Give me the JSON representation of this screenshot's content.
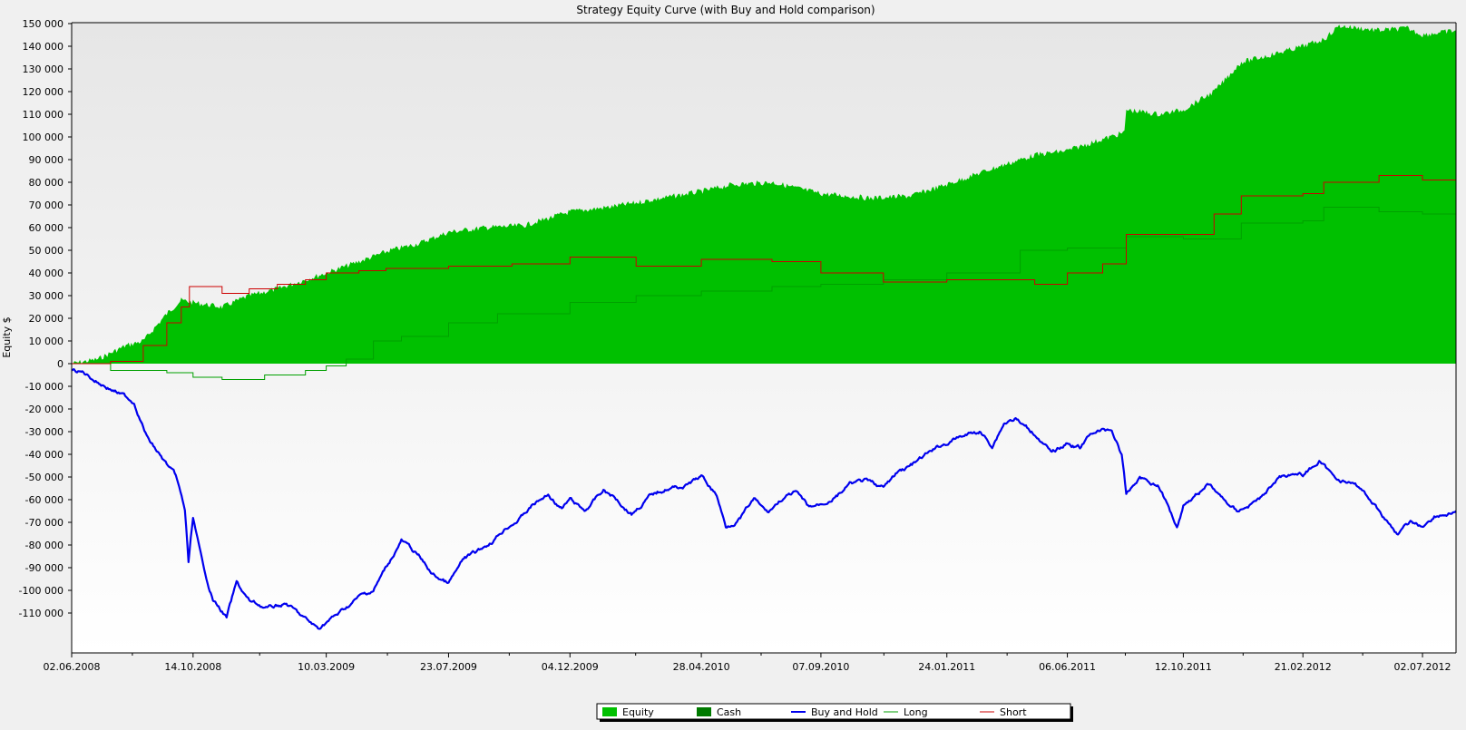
{
  "chart_data": {
    "type": "area",
    "title": "Strategy Equity Curve (with Buy and Hold comparison)",
    "xlabel": "",
    "ylabel": "Equity $",
    "ylim": [
      -120000,
      150000
    ],
    "y_ticks": [
      150000,
      140000,
      130000,
      120000,
      110000,
      100000,
      90000,
      80000,
      70000,
      60000,
      50000,
      40000,
      30000,
      20000,
      10000,
      0,
      -10000,
      -20000,
      -30000,
      -40000,
      -50000,
      -60000,
      -70000,
      -80000,
      -90000,
      -100000,
      -110000
    ],
    "y_tick_labels": [
      "150 000",
      "140 000",
      "130 000",
      "120 000",
      "110 000",
      "100 000",
      "90 000",
      "80 000",
      "70 000",
      "60 000",
      "50 000",
      "40 000",
      "30 000",
      "20 000",
      "10 000",
      "0",
      "-10 000",
      "-20 000",
      "-30 000",
      "-40 000",
      "-50 000",
      "-60 000",
      "-70 000",
      "-80 000",
      "-90 000",
      "-100 000",
      "-110 000"
    ],
    "xlim": [
      "2008-06-02",
      "2012-08-08"
    ],
    "x_ticks": [
      "2008-06-02",
      "2008-10-14",
      "2009-03-10",
      "2009-07-23",
      "2009-12-04",
      "2010-04-28",
      "2010-09-07",
      "2011-01-24",
      "2011-06-06",
      "2011-10-12",
      "2012-02-21",
      "2012-07-02"
    ],
    "x_tick_labels": [
      "02.06.2008",
      "14.10.2008",
      "10.03.2009",
      "23.07.2009",
      "04.12.2009",
      "28.04.2010",
      "07.09.2010",
      "24.01.2011",
      "06.06.2011",
      "12.10.2011",
      "21.02.2012",
      "02.07.2012"
    ],
    "grid": false,
    "legend_position": "bottom-center",
    "series": [
      {
        "name": "Equity",
        "kind": "area",
        "color": "#00c000",
        "points": [
          [
            "2008-06-02",
            0
          ],
          [
            "2008-07-01",
            2000
          ],
          [
            "2008-08-01",
            8000
          ],
          [
            "2008-08-20",
            10000
          ],
          [
            "2008-09-15",
            22000
          ],
          [
            "2008-10-01",
            28000
          ],
          [
            "2008-10-14",
            27000
          ],
          [
            "2008-11-15",
            25000
          ],
          [
            "2008-12-15",
            30000
          ],
          [
            "2009-01-15",
            33000
          ],
          [
            "2009-02-15",
            37000
          ],
          [
            "2009-03-10",
            40000
          ],
          [
            "2009-04-15",
            45000
          ],
          [
            "2009-05-20",
            50000
          ],
          [
            "2009-06-20",
            53000
          ],
          [
            "2009-07-23",
            58000
          ],
          [
            "2009-09-01",
            60000
          ],
          [
            "2009-10-15",
            61000
          ],
          [
            "2009-12-04",
            67000
          ],
          [
            "2010-01-15",
            69000
          ],
          [
            "2010-02-15",
            71000
          ],
          [
            "2010-04-28",
            76000
          ],
          [
            "2010-06-01",
            79000
          ],
          [
            "2010-07-15",
            80000
          ],
          [
            "2010-09-07",
            75000
          ],
          [
            "2010-11-01",
            73000
          ],
          [
            "2010-12-15",
            74000
          ],
          [
            "2011-01-24",
            79000
          ],
          [
            "2011-03-15",
            86000
          ],
          [
            "2011-05-01",
            92000
          ],
          [
            "2011-06-06",
            94000
          ],
          [
            "2011-07-15",
            99000
          ],
          [
            "2011-08-08",
            102000
          ],
          [
            "2011-08-10",
            112000
          ],
          [
            "2011-09-15",
            110000
          ],
          [
            "2011-10-12",
            112000
          ],
          [
            "2011-11-15",
            120000
          ],
          [
            "2011-12-15",
            133000
          ],
          [
            "2012-01-15",
            136000
          ],
          [
            "2012-02-21",
            140000
          ],
          [
            "2012-03-15",
            143000
          ],
          [
            "2012-04-01",
            149000
          ],
          [
            "2012-05-15",
            147000
          ],
          [
            "2012-06-15",
            148000
          ],
          [
            "2012-07-02",
            145000
          ],
          [
            "2012-08-08",
            147000
          ]
        ]
      },
      {
        "name": "Cash",
        "kind": "area",
        "color": "#007a00",
        "points": []
      },
      {
        "name": "Buy and Hold",
        "kind": "line",
        "color": "#0000ee",
        "points": [
          [
            "2008-06-02",
            -3000
          ],
          [
            "2008-06-15",
            -4000
          ],
          [
            "2008-07-01",
            -8000
          ],
          [
            "2008-07-20",
            -12000
          ],
          [
            "2008-08-10",
            -17000
          ],
          [
            "2008-08-25",
            -33000
          ],
          [
            "2008-09-10",
            -42000
          ],
          [
            "2008-09-25",
            -50000
          ],
          [
            "2008-10-05",
            -65000
          ],
          [
            "2008-10-09",
            -88000
          ],
          [
            "2008-10-14",
            -68000
          ],
          [
            "2008-10-25",
            -90000
          ],
          [
            "2008-11-05",
            -104000
          ],
          [
            "2008-11-20",
            -112000
          ],
          [
            "2008-12-01",
            -97000
          ],
          [
            "2008-12-15",
            -105000
          ],
          [
            "2009-01-05",
            -108000
          ],
          [
            "2009-01-25",
            -106000
          ],
          [
            "2009-02-15",
            -113000
          ],
          [
            "2009-03-01",
            -117000
          ],
          [
            "2009-03-10",
            -114000
          ],
          [
            "2009-03-25",
            -110000
          ],
          [
            "2009-04-15",
            -103000
          ],
          [
            "2009-05-01",
            -100000
          ],
          [
            "2009-05-15",
            -90000
          ],
          [
            "2009-06-01",
            -78000
          ],
          [
            "2009-06-20",
            -85000
          ],
          [
            "2009-07-05",
            -93000
          ],
          [
            "2009-07-23",
            -97000
          ],
          [
            "2009-08-10",
            -86000
          ],
          [
            "2009-08-25",
            -83000
          ],
          [
            "2009-09-10",
            -78000
          ],
          [
            "2009-09-25",
            -72000
          ],
          [
            "2009-10-10",
            -68000
          ],
          [
            "2009-10-25",
            -62000
          ],
          [
            "2009-11-10",
            -58000
          ],
          [
            "2009-11-25",
            -64000
          ],
          [
            "2009-12-04",
            -60000
          ],
          [
            "2009-12-20",
            -65000
          ],
          [
            "2010-01-10",
            -56000
          ],
          [
            "2010-01-25",
            -60000
          ],
          [
            "2010-02-10",
            -66000
          ],
          [
            "2010-03-01",
            -59000
          ],
          [
            "2010-03-20",
            -55000
          ],
          [
            "2010-04-10",
            -54000
          ],
          [
            "2010-04-28",
            -50000
          ],
          [
            "2010-05-15",
            -58000
          ],
          [
            "2010-05-25",
            -72000
          ],
          [
            "2010-06-10",
            -68000
          ],
          [
            "2010-06-25",
            -60000
          ],
          [
            "2010-07-10",
            -66000
          ],
          [
            "2010-07-25",
            -60000
          ],
          [
            "2010-08-10",
            -57000
          ],
          [
            "2010-08-25",
            -64000
          ],
          [
            "2010-09-07",
            -62000
          ],
          [
            "2010-09-25",
            -58000
          ],
          [
            "2010-10-10",
            -53000
          ],
          [
            "2010-10-25",
            -52000
          ],
          [
            "2010-11-15",
            -55000
          ],
          [
            "2010-12-01",
            -48000
          ],
          [
            "2010-12-20",
            -44000
          ],
          [
            "2011-01-10",
            -38000
          ],
          [
            "2011-01-24",
            -35000
          ],
          [
            "2011-02-10",
            -32000
          ],
          [
            "2011-03-01",
            -30000
          ],
          [
            "2011-03-15",
            -36000
          ],
          [
            "2011-03-28",
            -26000
          ],
          [
            "2011-04-10",
            -24000
          ],
          [
            "2011-04-20",
            -28000
          ],
          [
            "2011-05-05",
            -32000
          ],
          [
            "2011-05-20",
            -40000
          ],
          [
            "2011-06-06",
            -35000
          ],
          [
            "2011-06-20",
            -37000
          ],
          [
            "2011-07-05",
            -30000
          ],
          [
            "2011-07-25",
            -29000
          ],
          [
            "2011-08-05",
            -40000
          ],
          [
            "2011-08-10",
            -58000
          ],
          [
            "2011-08-25",
            -50000
          ],
          [
            "2011-09-15",
            -54000
          ],
          [
            "2011-10-01",
            -68000
          ],
          [
            "2011-10-05",
            -72000
          ],
          [
            "2011-10-12",
            -62000
          ],
          [
            "2011-10-28",
            -57000
          ],
          [
            "2011-11-10",
            -53000
          ],
          [
            "2011-11-25",
            -60000
          ],
          [
            "2011-12-10",
            -65000
          ],
          [
            "2011-12-25",
            -62000
          ],
          [
            "2012-01-10",
            -58000
          ],
          [
            "2012-01-25",
            -50000
          ],
          [
            "2012-02-10",
            -48000
          ],
          [
            "2012-02-21",
            -49000
          ],
          [
            "2012-03-10",
            -43000
          ],
          [
            "2012-03-25",
            -50000
          ],
          [
            "2012-04-10",
            -52000
          ],
          [
            "2012-04-25",
            -55000
          ],
          [
            "2012-05-10",
            -62000
          ],
          [
            "2012-05-25",
            -70000
          ],
          [
            "2012-06-05",
            -75000
          ],
          [
            "2012-06-20",
            -70000
          ],
          [
            "2012-07-02",
            -72000
          ],
          [
            "2012-07-15",
            -67000
          ],
          [
            "2012-08-01",
            -66000
          ],
          [
            "2012-08-08",
            -65000
          ]
        ]
      },
      {
        "name": "Long",
        "kind": "line",
        "color": "#00a000",
        "points": [
          [
            "2008-06-02",
            0
          ],
          [
            "2008-07-15",
            -3000
          ],
          [
            "2008-09-15",
            -4000
          ],
          [
            "2008-10-14",
            -6000
          ],
          [
            "2008-11-15",
            -7000
          ],
          [
            "2009-01-01",
            -5000
          ],
          [
            "2009-02-15",
            -3000
          ],
          [
            "2009-03-10",
            -1000
          ],
          [
            "2009-04-01",
            2000
          ],
          [
            "2009-05-01",
            10000
          ],
          [
            "2009-06-01",
            12000
          ],
          [
            "2009-07-23",
            18000
          ],
          [
            "2009-09-15",
            22000
          ],
          [
            "2009-12-04",
            27000
          ],
          [
            "2010-02-15",
            30000
          ],
          [
            "2010-04-28",
            32000
          ],
          [
            "2010-07-15",
            34000
          ],
          [
            "2010-09-07",
            35000
          ],
          [
            "2010-11-15",
            37000
          ],
          [
            "2011-01-24",
            40000
          ],
          [
            "2011-04-15",
            50000
          ],
          [
            "2011-06-06",
            51000
          ],
          [
            "2011-08-10",
            56000
          ],
          [
            "2011-10-12",
            55000
          ],
          [
            "2011-12-15",
            62000
          ],
          [
            "2012-02-21",
            63000
          ],
          [
            "2012-03-15",
            69000
          ],
          [
            "2012-05-15",
            67000
          ],
          [
            "2012-07-02",
            66000
          ],
          [
            "2012-08-08",
            66000
          ]
        ]
      },
      {
        "name": "Short",
        "kind": "line",
        "color": "#cc0000",
        "points": [
          [
            "2008-06-02",
            0
          ],
          [
            "2008-07-15",
            1000
          ],
          [
            "2008-08-20",
            8000
          ],
          [
            "2008-09-15",
            18000
          ],
          [
            "2008-10-01",
            25000
          ],
          [
            "2008-10-10",
            34000
          ],
          [
            "2008-11-15",
            31000
          ],
          [
            "2008-12-15",
            33000
          ],
          [
            "2009-01-15",
            35000
          ],
          [
            "2009-02-15",
            37000
          ],
          [
            "2009-03-10",
            40000
          ],
          [
            "2009-04-15",
            41000
          ],
          [
            "2009-05-15",
            42000
          ],
          [
            "2009-07-23",
            43000
          ],
          [
            "2009-10-01",
            44000
          ],
          [
            "2009-12-04",
            47000
          ],
          [
            "2010-02-15",
            43000
          ],
          [
            "2010-04-28",
            46000
          ],
          [
            "2010-07-15",
            45000
          ],
          [
            "2010-09-07",
            40000
          ],
          [
            "2010-11-15",
            36000
          ],
          [
            "2011-01-24",
            37000
          ],
          [
            "2011-03-15",
            37000
          ],
          [
            "2011-05-01",
            35000
          ],
          [
            "2011-06-06",
            40000
          ],
          [
            "2011-07-15",
            44000
          ],
          [
            "2011-08-08",
            44000
          ],
          [
            "2011-08-10",
            57000
          ],
          [
            "2011-10-12",
            57000
          ],
          [
            "2011-11-15",
            66000
          ],
          [
            "2011-12-15",
            74000
          ],
          [
            "2012-02-21",
            75000
          ],
          [
            "2012-03-15",
            80000
          ],
          [
            "2012-05-15",
            83000
          ],
          [
            "2012-07-02",
            81000
          ],
          [
            "2012-08-08",
            80000
          ]
        ]
      }
    ]
  },
  "colors": {
    "axis": "#000000",
    "legend_border": "#000000",
    "plot_top": "#e6e6e6",
    "plot_bottom": "#ffffff"
  }
}
